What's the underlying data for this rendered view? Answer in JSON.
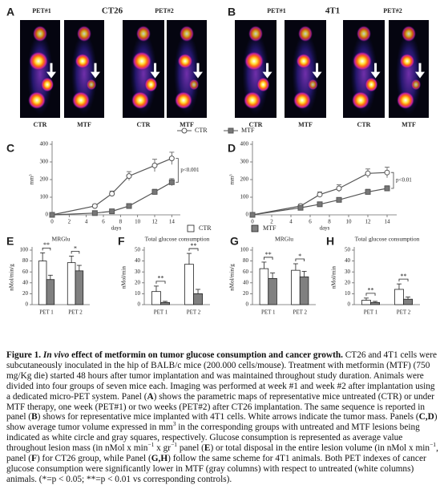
{
  "pet_panels": [
    {
      "letter": "A",
      "model": "CT26",
      "scans": [
        "PET#1",
        "PET#2"
      ],
      "groups": [
        "CTR",
        "MTF",
        "CTR",
        "MTF"
      ]
    },
    {
      "letter": "B",
      "model": "4T1",
      "scans": [
        "PET#1",
        "PET#2"
      ],
      "groups": [
        "CTR",
        "MTF",
        "CTR",
        "MTF"
      ]
    }
  ],
  "chart_data": [
    {
      "type": "line",
      "letter": "C",
      "ylabel": "mm³",
      "xlabel": "days",
      "annotation": "p<0.001",
      "x": [
        0,
        5,
        7,
        9,
        12,
        14
      ],
      "xlim": [
        0,
        15
      ],
      "xticks": [
        0,
        2,
        4,
        6,
        8,
        10,
        12,
        14
      ],
      "ylim": [
        0,
        400
      ],
      "yticks": [
        0,
        100,
        200,
        300,
        400
      ],
      "series": [
        {
          "name": "CTR",
          "color": "#555555",
          "fill": "#ffffff",
          "marker": "circle",
          "values": [
            0,
            50,
            120,
            220,
            280,
            320
          ],
          "errors": [
            0,
            10,
            15,
            25,
            35,
            35
          ]
        },
        {
          "name": "MTF",
          "color": "#555555",
          "fill": "#777777",
          "marker": "square",
          "values": [
            0,
            10,
            20,
            50,
            130,
            185
          ],
          "errors": [
            0,
            5,
            5,
            10,
            15,
            20
          ]
        }
      ]
    },
    {
      "type": "line",
      "letter": "D",
      "ylabel": "mm³",
      "xlabel": "days",
      "annotation": "p<0.01",
      "x": [
        0,
        5,
        7,
        9,
        12,
        14
      ],
      "xlim": [
        0,
        15
      ],
      "xticks": [
        0,
        2,
        4,
        6,
        8,
        10,
        12,
        14
      ],
      "ylim": [
        0,
        400
      ],
      "yticks": [
        0,
        100,
        200,
        300,
        400
      ],
      "series": [
        {
          "color": "#555555",
          "fill": "#ffffff",
          "marker": "circle",
          "values": [
            0,
            50,
            115,
            150,
            235,
            240
          ],
          "errors": [
            0,
            10,
            15,
            20,
            25,
            30
          ]
        },
        {
          "color": "#555555",
          "fill": "#777777",
          "marker": "square",
          "values": [
            0,
            40,
            60,
            85,
            130,
            150
          ],
          "errors": [
            0,
            8,
            10,
            10,
            15,
            15
          ]
        }
      ]
    },
    {
      "type": "bar",
      "letter": "E",
      "title": "MRGlu",
      "ylabel": "nMol/min/g",
      "categories": [
        "PET 1",
        "PET 2"
      ],
      "ylim": [
        0,
        100
      ],
      "yticks": [
        0,
        20,
        40,
        60,
        80,
        100
      ],
      "significance": [
        "**",
        "*"
      ],
      "series": [
        {
          "name": "CTR",
          "color": "#ffffff",
          "values": [
            80,
            77
          ],
          "errors": [
            15,
            12
          ]
        },
        {
          "name": "MTF",
          "color": "#808080",
          "values": [
            46,
            62
          ],
          "errors": [
            8,
            10
          ]
        }
      ]
    },
    {
      "type": "bar",
      "letter": "F",
      "title": "Total glucose consumption",
      "ylabel": "nMol/min",
      "categories": [
        "PET 1",
        "PET 2"
      ],
      "ylim": [
        0,
        50
      ],
      "yticks": [
        0,
        10,
        20,
        30,
        40,
        50
      ],
      "significance": [
        "**",
        "**"
      ],
      "series": [
        {
          "color": "#ffffff",
          "values": [
            12,
            37
          ],
          "errors": [
            5,
            10
          ]
        },
        {
          "color": "#808080",
          "values": [
            2,
            10
          ],
          "errors": [
            1,
            4
          ]
        }
      ]
    },
    {
      "type": "bar",
      "letter": "G",
      "title": "MRGlu",
      "ylabel": "nMol/min/g",
      "categories": [
        "PET 1",
        "PET 2"
      ],
      "ylim": [
        0,
        100
      ],
      "yticks": [
        0,
        20,
        40,
        60,
        80,
        100
      ],
      "significance": [
        "**",
        "*"
      ],
      "series": [
        {
          "color": "#ffffff",
          "values": [
            66,
            63
          ],
          "errors": [
            12,
            12
          ]
        },
        {
          "color": "#808080",
          "values": [
            48,
            51
          ],
          "errors": [
            10,
            10
          ]
        }
      ]
    },
    {
      "type": "bar",
      "letter": "H",
      "title": "Total glucose consumption",
      "ylabel": "nMol/min",
      "categories": [
        "PET 1",
        "PET 2"
      ],
      "ylim": [
        0,
        50
      ],
      "yticks": [
        0,
        10,
        20,
        30,
        40,
        50
      ],
      "significance": [
        "**",
        "**"
      ],
      "series": [
        {
          "color": "#ffffff",
          "values": [
            4,
            14
          ],
          "errors": [
            2,
            5
          ]
        },
        {
          "color": "#808080",
          "values": [
            2,
            5
          ],
          "errors": [
            1,
            2
          ]
        }
      ]
    }
  ],
  "caption": [
    {
      "text": "Figure 1. ",
      "bold": true
    },
    {
      "text": "In vivo",
      "bold": true,
      "italic": true
    },
    {
      "text": " effect of metformin on tumor glucose consumption and cancer growth.",
      "bold": true
    },
    {
      "text": " CT26 and 4T1 cells were subcutaneously inoculated in the hip of BALB/c mice (200.000 cells/mouse). Treatment with metformin (MTF) (750 mg/Kg die) started 48 hours after tumor implantation and was maintained throughout study duration. Animals were divided into four groups of seven mice each. Imaging was performed at week #1 and week #2 after implantation using a dedicated micro-PET system. Panel ("
    },
    {
      "text": "A",
      "bold": true
    },
    {
      "text": ") shows the parametric maps of representative mice untreated (CTR) or under MTF therapy, one week (PET#1) or two weeks (PET#2) after CT26 implantation. The same sequence is reported in panel ("
    },
    {
      "text": "B",
      "bold": true
    },
    {
      "text": ") shows for representative mice implanted with 4T1 cells. White arrows indicate the tumor mass. Panels ("
    },
    {
      "text": "C,D",
      "bold": true
    },
    {
      "text": ") show average tumor volume expressed in mm"
    },
    {
      "text": "3",
      "sup": true
    },
    {
      "text": " in the corresponding groups with untreated and MTF lesions being indicated as white circle and gray squares, respectively. Glucose consumption is represented as average value throughout lesion mass (in nMol x min"
    },
    {
      "text": "−1",
      "sup": true
    },
    {
      "text": " x gr"
    },
    {
      "text": "−1",
      "sup": true
    },
    {
      "text": " panel ("
    },
    {
      "text": "E",
      "bold": true
    },
    {
      "text": ") or total disposal in the entire lesion volume (in nMol x min"
    },
    {
      "text": "−1",
      "sup": true
    },
    {
      "text": ", panel ("
    },
    {
      "text": "F",
      "bold": true
    },
    {
      "text": ") for CT26 group, while Panel ("
    },
    {
      "text": "G,H",
      "bold": true
    },
    {
      "text": ") follow the same scheme for 4T1 animals. Both PET indexes of cancer glucose consumption were significantly lower in MTF (gray columns) with respect to untreated (white columns) animals. (*=p < 0.05; **=p < 0.01 vs corresponding controls)."
    }
  ]
}
